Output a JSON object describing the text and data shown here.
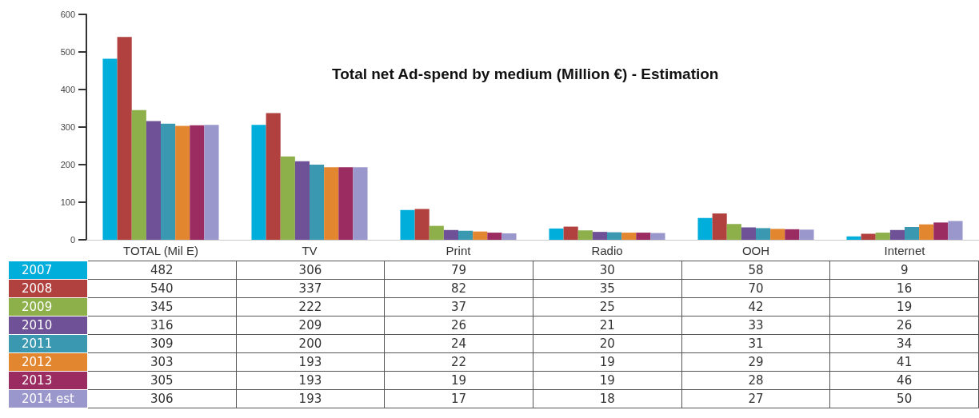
{
  "chart_data": {
    "type": "bar",
    "title": "Total net Ad-spend by medium (Million €) - Estimation",
    "categories": [
      "TOTAL (Mil E)",
      "TV",
      "Print",
      "Radio",
      "OOH",
      "Internet"
    ],
    "series": [
      {
        "name": "2007",
        "color": "#00aedb",
        "values": [
          482,
          306,
          79,
          30,
          58,
          9
        ]
      },
      {
        "name": "2008",
        "color": "#b0413e",
        "values": [
          540,
          337,
          82,
          35,
          70,
          16
        ]
      },
      {
        "name": "2009",
        "color": "#8db04a",
        "values": [
          345,
          222,
          37,
          25,
          42,
          19
        ]
      },
      {
        "name": "2010",
        "color": "#6e5196",
        "values": [
          316,
          209,
          26,
          21,
          33,
          26
        ]
      },
      {
        "name": "2011",
        "color": "#3a98b0",
        "values": [
          309,
          200,
          24,
          20,
          31,
          34
        ]
      },
      {
        "name": "2012",
        "color": "#e2862f",
        "values": [
          303,
          193,
          22,
          19,
          29,
          41
        ]
      },
      {
        "name": "2013",
        "color": "#9a2c62",
        "values": [
          305,
          193,
          19,
          19,
          28,
          46
        ]
      },
      {
        "name": "2014 est",
        "color": "#9a97cc",
        "values": [
          306,
          193,
          17,
          18,
          27,
          50
        ]
      }
    ],
    "ylim": [
      0,
      600
    ],
    "yticks": [
      0,
      100,
      200,
      300,
      400,
      500,
      600
    ],
    "grid": false,
    "legend": "bottom left",
    "data_labels": true
  }
}
